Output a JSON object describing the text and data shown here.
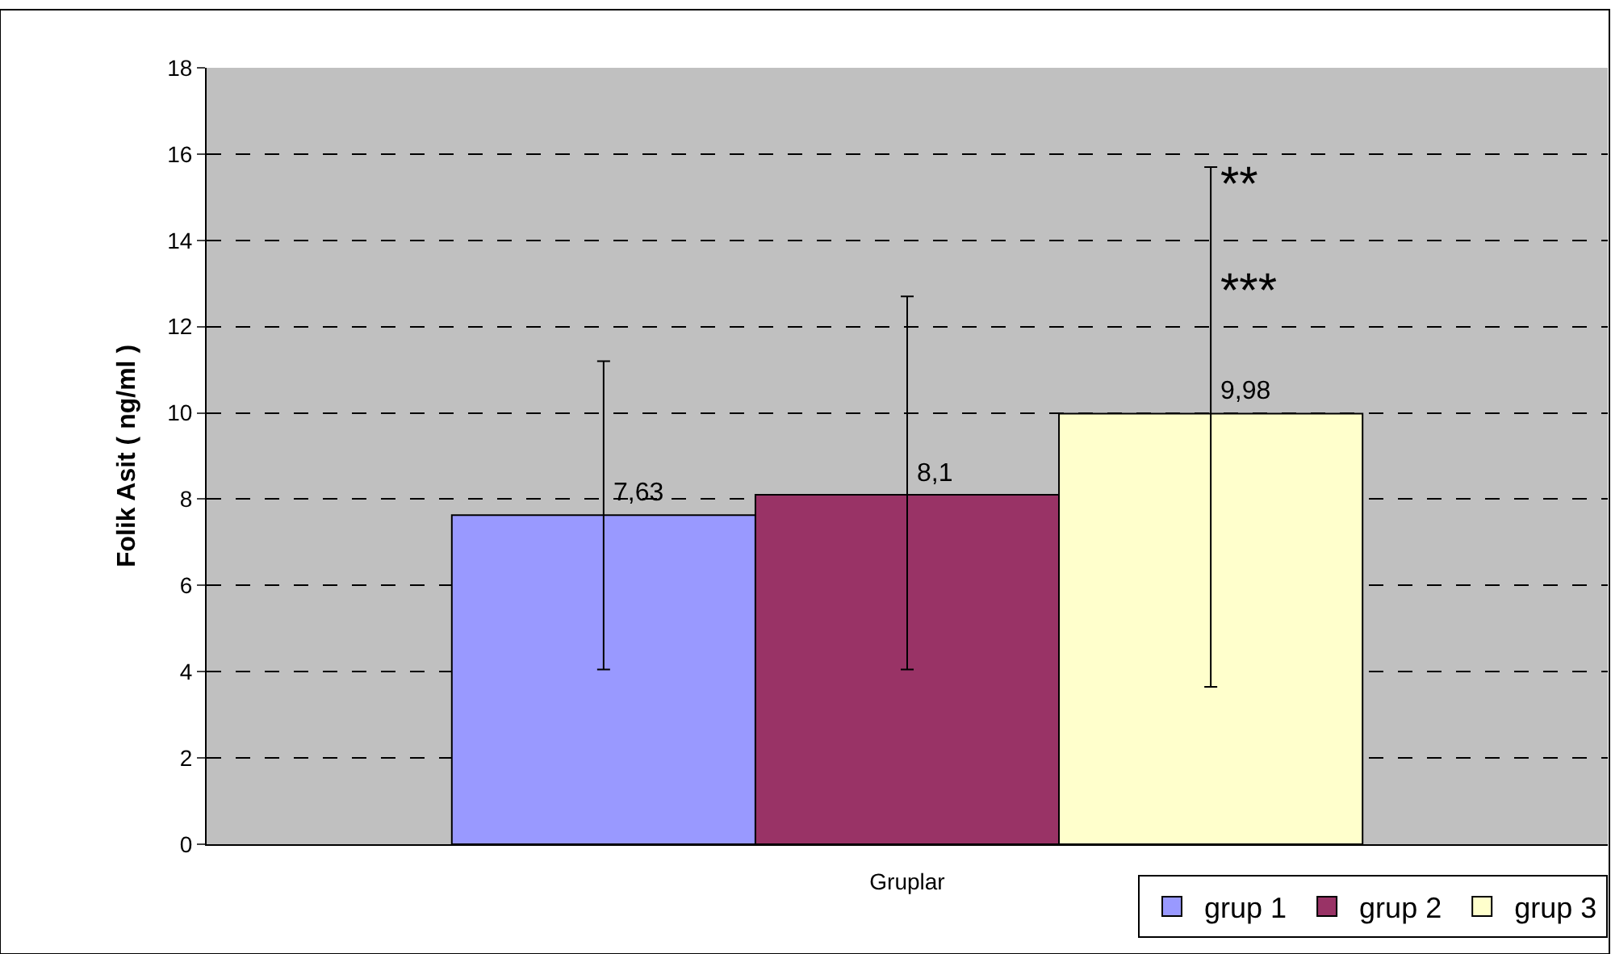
{
  "chart_data": {
    "type": "bar",
    "xlabel": "Gruplar",
    "ylabel": "Folik Asit ( ng/ml )",
    "categories": [
      null
    ],
    "series": [
      {
        "name": "grup 1",
        "color": "#9999ff",
        "values": [
          7.63
        ],
        "errors": [
          [
            4.05,
            11.2
          ]
        ],
        "value_labels": [
          "7,63"
        ]
      },
      {
        "name": "grup 2",
        "color": "#993366",
        "values": [
          8.1
        ],
        "errors": [
          [
            4.05,
            12.7
          ]
        ],
        "value_labels": [
          "8,1"
        ]
      },
      {
        "name": "grup 3",
        "color": "#ffffcc",
        "values": [
          9.98
        ],
        "errors": [
          [
            3.65,
            15.7
          ]
        ],
        "value_labels": [
          "9,98"
        ]
      }
    ],
    "ylim": [
      0,
      18
    ],
    "yticks": [
      0,
      2,
      4,
      6,
      8,
      10,
      12,
      14,
      16,
      18
    ],
    "grid": "y",
    "legend": "bottom right",
    "annotations": [
      "**",
      "***"
    ]
  }
}
